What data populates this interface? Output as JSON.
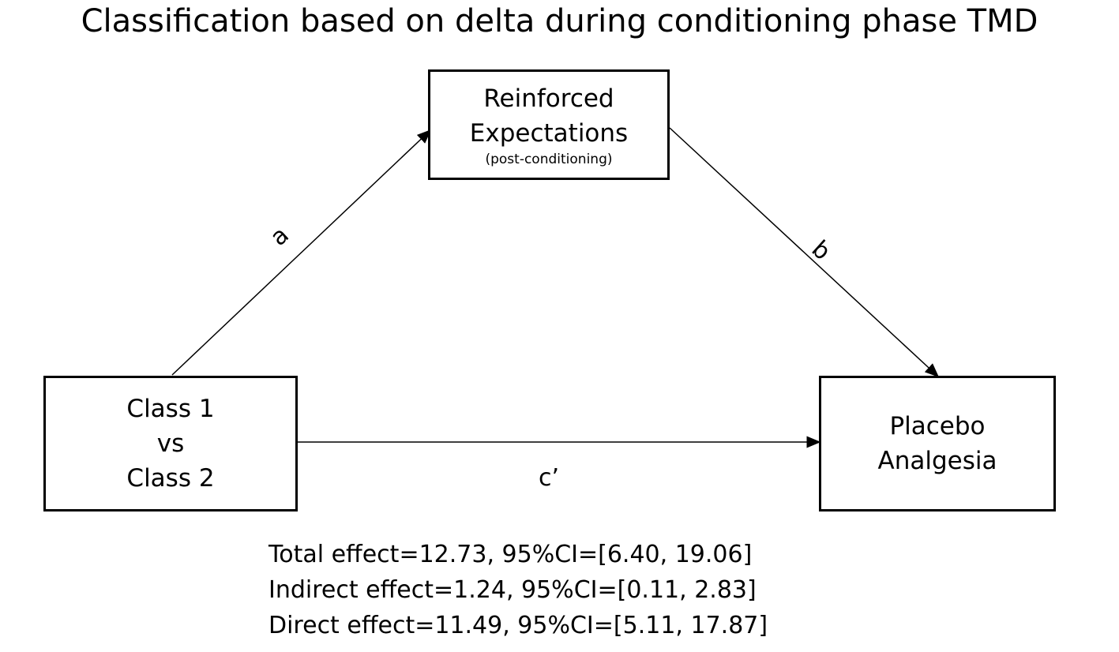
{
  "title": "Classification based on delta during conditioning phase TMD",
  "nodes": {
    "mediator": {
      "line1": "Reinforced",
      "line2": "Expectations",
      "sub": "(post-conditioning)"
    },
    "predictor": {
      "line1": "Class 1",
      "line2": "vs",
      "line3": "Class 2"
    },
    "outcome": {
      "line1": "Placebo",
      "line2": "Analgesia"
    }
  },
  "paths": {
    "a": "a",
    "b": "b",
    "c": "c’"
  },
  "stats": [
    "Total effect=12.73, 95%CI=[6.40, 19.06]",
    "Indirect effect=1.24, 95%CI=[0.11, 2.83]",
    "Direct effect=11.49, 95%CI=[5.11, 17.87]"
  ]
}
